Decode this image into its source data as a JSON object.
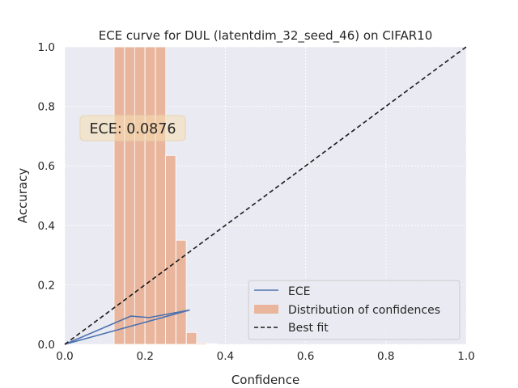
{
  "chart_data": {
    "type": "bar",
    "title": "ECE curve for DUL (latentdim_32_seed_46) on CIFAR10",
    "xlabel": "Confidence",
    "ylabel": "Accuracy",
    "xlim": [
      0,
      1
    ],
    "ylim": [
      0,
      1
    ],
    "grid": true,
    "xticks": [
      "0.0",
      "0.2",
      "0.4",
      "0.6",
      "0.8",
      "1.0"
    ],
    "yticks": [
      "0.0",
      "0.2",
      "0.4",
      "0.6",
      "0.8",
      "1.0"
    ],
    "legend_position": "lower-right",
    "annotation": "ECE: 0.0876",
    "histogram": {
      "name": "Distribution of confidences",
      "color": "#e9b69d",
      "bin_width": 0.0256,
      "bins": [
        {
          "x0": 0.123,
          "value": 1.0
        },
        {
          "x0": 0.149,
          "value": 1.0
        },
        {
          "x0": 0.174,
          "value": 1.0
        },
        {
          "x0": 0.2,
          "value": 1.0
        },
        {
          "x0": 0.226,
          "value": 1.0
        },
        {
          "x0": 0.251,
          "value": 0.635
        },
        {
          "x0": 0.277,
          "value": 0.35
        },
        {
          "x0": 0.303,
          "value": 0.04
        },
        {
          "x0": 0.328,
          "value": 0.004
        },
        {
          "x0": 0.354,
          "value": 0.002
        }
      ]
    },
    "series": [
      {
        "name": "ECE",
        "color": "#4c72b0",
        "points": [
          [
            0.0,
            0.0
          ],
          [
            0.165,
            0.095
          ],
          [
            0.21,
            0.09
          ],
          [
            0.31,
            0.115
          ],
          [
            0.0,
            0.0
          ]
        ]
      },
      {
        "name": "Best fit",
        "color": "#1a1a1a",
        "dashed": true,
        "points": [
          [
            0.0,
            0.0
          ],
          [
            1.0,
            1.0
          ]
        ]
      }
    ]
  }
}
